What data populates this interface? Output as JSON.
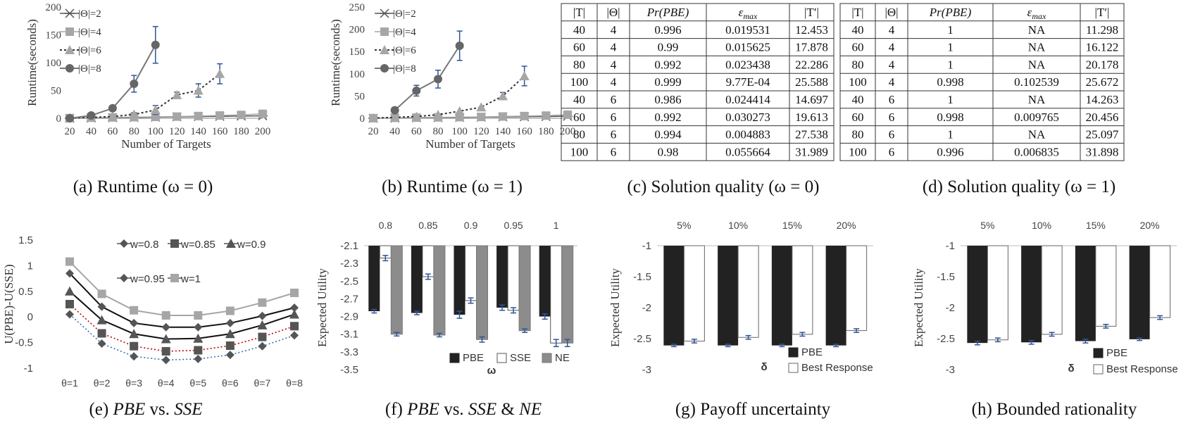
{
  "captions": {
    "a": "(a)  Runtime (ω = 0)",
    "b": "(b)  Runtime (ω = 1)",
    "c": "(c)  Solution quality (ω = 0)",
    "d": "(d)  Solution quality (ω = 1)",
    "e_label": "(e) ",
    "e_pbe": "PBE",
    "e_vs": " vs. ",
    "e_sse": "SSE",
    "f_label": "(f) ",
    "f_pbe": "PBE",
    "f_vs": " vs. ",
    "f_sse": "SSE",
    "f_amp": " & ",
    "f_ne": "NE",
    "g": "(g)  Payoff uncertainty",
    "h": "(h)  Bounded rationality"
  },
  "colors": {
    "dark": "#555555",
    "light": "#a6a6a6",
    "black": "#222222",
    "blue_err": "#2f5597",
    "grey_bar": "#8c8c8c"
  },
  "chart_data": [
    {
      "id": "a",
      "type": "line",
      "xlabel": "Number of Targets",
      "ylabel": "Runtime(seconds)",
      "x_ticks": [
        20,
        40,
        60,
        80,
        100,
        120,
        140,
        160,
        180,
        200
      ],
      "ylim": [
        0,
        200
      ],
      "y_ticks": [
        0,
        50,
        100,
        150,
        200
      ],
      "series": [
        {
          "name": "|Θ|=2",
          "marker": "x",
          "x": [
            20,
            40,
            60,
            80,
            100,
            120,
            140,
            160,
            180,
            200
          ],
          "y": [
            0,
            0.5,
            1,
            1.5,
            2,
            2.5,
            3,
            3.5,
            4,
            4.5
          ],
          "err": []
        },
        {
          "name": "|Θ|=4",
          "marker": "square",
          "x": [
            20,
            40,
            60,
            80,
            100,
            120,
            140,
            160,
            180,
            200
          ],
          "y": [
            0.3,
            1,
            1.5,
            2,
            2.5,
            3,
            4,
            5,
            6,
            8
          ],
          "err": []
        },
        {
          "name": "|Θ|=6",
          "marker": "triangle",
          "x": [
            20,
            40,
            60,
            80,
            100,
            120,
            140,
            160
          ],
          "y": [
            0.5,
            1.5,
            3,
            7,
            15,
            42,
            50,
            80
          ],
          "err": [
            0,
            0,
            0,
            3,
            8,
            5,
            12,
            18
          ]
        },
        {
          "name": "|Θ|=8",
          "marker": "circle",
          "x": [
            20,
            40,
            60,
            80,
            100
          ],
          "y": [
            0,
            5,
            18,
            62,
            132
          ],
          "err": [
            0,
            0,
            0,
            15,
            33
          ]
        }
      ]
    },
    {
      "id": "b",
      "type": "line",
      "xlabel": "Number of Targets",
      "ylabel": "Runtime(seconds)",
      "x_ticks": [
        20,
        40,
        60,
        80,
        100,
        120,
        140,
        160,
        180,
        200
      ],
      "ylim": [
        0,
        250
      ],
      "y_ticks": [
        0,
        50,
        100,
        150,
        200,
        250
      ],
      "series": [
        {
          "name": "|Θ|=2",
          "marker": "x",
          "x": [
            20,
            40,
            60,
            80,
            100,
            120,
            140,
            160,
            180,
            200
          ],
          "y": [
            0,
            0.5,
            1,
            1.5,
            2,
            2.5,
            3,
            3.5,
            4,
            4.5
          ],
          "err": []
        },
        {
          "name": "|Θ|=4",
          "marker": "square",
          "x": [
            20,
            40,
            60,
            80,
            100,
            120,
            140,
            160,
            180,
            200
          ],
          "y": [
            0.3,
            1,
            1.5,
            2,
            2.5,
            3,
            4,
            5,
            6,
            8
          ],
          "err": []
        },
        {
          "name": "|Θ|=6",
          "marker": "triangle",
          "x": [
            20,
            40,
            60,
            80,
            100,
            120,
            140,
            160
          ],
          "y": [
            0.5,
            2,
            4,
            8,
            16,
            25,
            50,
            95
          ],
          "err": [
            0,
            0,
            0,
            0,
            0,
            0,
            8,
            22
          ]
        },
        {
          "name": "|Θ|=8",
          "marker": "circle",
          "x": [
            40,
            60,
            80,
            100
          ],
          "y": [
            18,
            62,
            88,
            163
          ],
          "err": [
            0,
            12,
            20,
            33
          ]
        }
      ]
    },
    {
      "id": "c",
      "type": "table",
      "columns": [
        "|T|",
        "|Θ|",
        "Pr(PBE)",
        "ε_max",
        "|T′|"
      ],
      "rows": [
        [
          "40",
          "4",
          "0.996",
          "0.019531",
          "12.453"
        ],
        [
          "60",
          "4",
          "0.99",
          "0.015625",
          "17.878"
        ],
        [
          "80",
          "4",
          "0.992",
          "0.023438",
          "22.286"
        ],
        [
          "100",
          "4",
          "0.999",
          "9.77E-04",
          "25.588"
        ],
        [
          "40",
          "6",
          "0.986",
          "0.024414",
          "14.697"
        ],
        [
          "60",
          "6",
          "0.992",
          "0.030273",
          "19.613"
        ],
        [
          "80",
          "6",
          "0.994",
          "0.004883",
          "27.538"
        ],
        [
          "100",
          "6",
          "0.98",
          "0.055664",
          "31.989"
        ]
      ]
    },
    {
      "id": "d",
      "type": "table",
      "columns": [
        "|T|",
        "|Θ|",
        "Pr(PBE)",
        "ε_max",
        "|T′|"
      ],
      "rows": [
        [
          "40",
          "4",
          "1",
          "NA",
          "11.298"
        ],
        [
          "60",
          "4",
          "1",
          "NA",
          "16.122"
        ],
        [
          "80",
          "4",
          "1",
          "NA",
          "20.178"
        ],
        [
          "100",
          "4",
          "0.998",
          "0.102539",
          "25.672"
        ],
        [
          "40",
          "6",
          "1",
          "NA",
          "14.263"
        ],
        [
          "60",
          "6",
          "0.998",
          "0.009765",
          "20.456"
        ],
        [
          "80",
          "6",
          "1",
          "NA",
          "25.097"
        ],
        [
          "100",
          "6",
          "0.996",
          "0.006835",
          "31.898"
        ]
      ]
    },
    {
      "id": "e",
      "type": "line",
      "ylabel": "U(PBE)-U(SSE)",
      "categories": [
        "θ=1",
        "θ=2",
        "θ=3",
        "θ=4",
        "θ=5",
        "θ=6",
        "θ=7",
        "θ=8"
      ],
      "ylim": [
        -1,
        1.5
      ],
      "y_ticks": [
        -1,
        -0.5,
        0,
        0.5,
        1,
        1.5
      ],
      "y_tick_labels": [
        "-1",
        "-0.5",
        "0",
        "0.5",
        "1",
        "1.5"
      ],
      "series": [
        {
          "name": "w=0.8",
          "marker": "diamond",
          "values": [
            0.05,
            -0.52,
            -0.77,
            -0.84,
            -0.82,
            -0.74,
            -0.57,
            -0.36
          ]
        },
        {
          "name": "w=0.85",
          "marker": "square",
          "values": [
            0.25,
            -0.32,
            -0.57,
            -0.67,
            -0.65,
            -0.56,
            -0.39,
            -0.18
          ]
        },
        {
          "name": "w=0.9",
          "marker": "triangle",
          "values": [
            0.5,
            -0.06,
            -0.33,
            -0.43,
            -0.42,
            -0.33,
            -0.16,
            0.05
          ]
        },
        {
          "name": "w=0.95",
          "marker": "diamond",
          "values": [
            0.85,
            0.2,
            -0.12,
            -0.2,
            -0.2,
            -0.12,
            0.02,
            0.18
          ]
        },
        {
          "name": "w=1",
          "marker": "square",
          "values": [
            1.08,
            0.45,
            0.13,
            0.03,
            0.03,
            0.12,
            0.28,
            0.47
          ]
        }
      ]
    },
    {
      "id": "f",
      "type": "bar",
      "ylabel": "Expected Utility",
      "xlabel": "ω",
      "categories": [
        "0.8",
        "0.85",
        "0.9",
        "0.95",
        "1"
      ],
      "ylim": [
        -3.5,
        -2.1
      ],
      "y_ticks": [
        -2.1,
        -2.3,
        -2.5,
        -2.7,
        -2.9,
        -3.1,
        -3.3,
        -3.5
      ],
      "y_tick_labels": [
        "-2.1",
        "-2.3",
        "-2.5",
        "-2.7",
        "-2.9",
        "-3.1",
        "-3.3",
        "-3.5"
      ],
      "series": [
        {
          "name": "PBE",
          "values": [
            -2.84,
            -2.86,
            -2.88,
            -2.8,
            -2.9
          ],
          "err": [
            0.02,
            0.02,
            0.04,
            0.03,
            0.03
          ]
        },
        {
          "name": "SSE",
          "values": [
            -2.24,
            -2.45,
            -2.72,
            -2.83,
            -3.2
          ],
          "err": [
            0.03,
            0.03,
            0.03,
            0.03,
            0.04
          ]
        },
        {
          "name": "NE",
          "values": [
            -3.1,
            -3.11,
            -3.16,
            -3.06,
            -3.2
          ],
          "err": [
            0.02,
            0.02,
            0.03,
            0.02,
            0.04
          ]
        }
      ]
    },
    {
      "id": "g",
      "type": "bar",
      "ylabel": "Expected Utility",
      "xlabel": "δ",
      "categories": [
        "5%",
        "10%",
        "15%",
        "20%"
      ],
      "ylim": [
        -3,
        -1
      ],
      "y_ticks": [
        -1,
        -1.5,
        -2,
        -2.5,
        -3
      ],
      "y_tick_labels": [
        "-1",
        "-1.5",
        "-2",
        "-2.5",
        "-3"
      ],
      "series": [
        {
          "name": "PBE",
          "values": [
            -2.61,
            -2.61,
            -2.61,
            -2.61
          ],
          "err": [
            0.02,
            0.02,
            0.02,
            0.02
          ]
        },
        {
          "name": "Best Response",
          "values": [
            -2.54,
            -2.48,
            -2.43,
            -2.37
          ],
          "err": [
            0.03,
            0.03,
            0.03,
            0.03
          ]
        }
      ]
    },
    {
      "id": "h",
      "type": "bar",
      "ylabel": "Expected Utility",
      "xlabel": "δ",
      "categories": [
        "5%",
        "10%",
        "15%",
        "20%"
      ],
      "ylim": [
        -3,
        -1
      ],
      "y_ticks": [
        -1,
        -1.5,
        -2,
        -2.5,
        -3
      ],
      "y_tick_labels": [
        "-1",
        "-1.5",
        "-2",
        "-2.5",
        "-3"
      ],
      "series": [
        {
          "name": "PBE",
          "values": [
            -2.57,
            -2.56,
            -2.54,
            -2.51
          ],
          "err": [
            0.03,
            0.03,
            0.03,
            0.02
          ]
        },
        {
          "name": "Best Response",
          "values": [
            -2.52,
            -2.43,
            -2.3,
            -2.16
          ],
          "err": [
            0.03,
            0.03,
            0.03,
            0.03
          ]
        }
      ]
    }
  ]
}
